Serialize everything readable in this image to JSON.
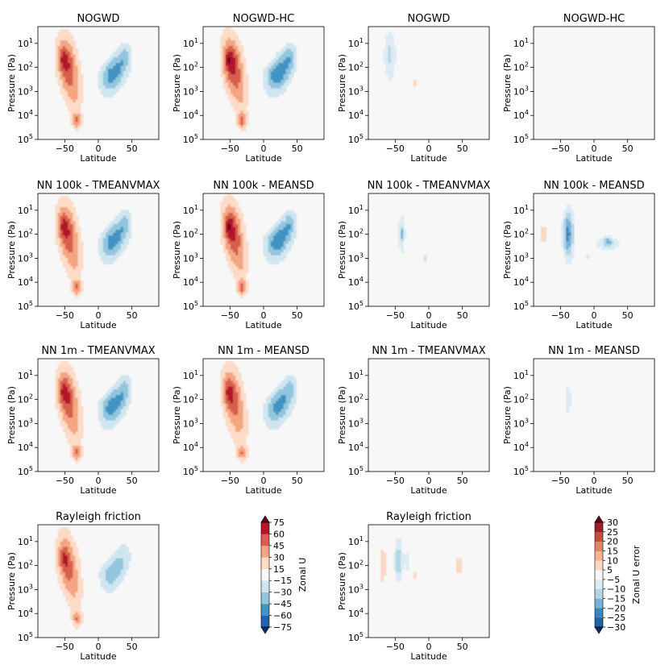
{
  "chart_data": {
    "type": "heatmap",
    "panels": [
      {
        "title": "NOGWD",
        "kind": "field",
        "mode": "field",
        "scale": 1.0
      },
      {
        "title": "NOGWD-HC",
        "kind": "field",
        "mode": "field",
        "scale": 1.06
      },
      {
        "title": "NOGWD",
        "kind": "error",
        "mode": "err_nogwd",
        "scale": 1.0
      },
      {
        "title": "NOGWD-HC",
        "kind": "error",
        "mode": "empty",
        "scale": 0
      },
      {
        "title": "NN 100k - TMEANVMAX",
        "kind": "field",
        "mode": "field",
        "scale": 1.0
      },
      {
        "title": "NN 100k - MEANSD",
        "kind": "field",
        "mode": "field",
        "scale": 1.05
      },
      {
        "title": "NN 100k - TMEANVMAX",
        "kind": "error",
        "mode": "err_nn100a",
        "scale": 1.0
      },
      {
        "title": "NN 100k - MEANSD",
        "kind": "error",
        "mode": "err_nn100b",
        "scale": 1.0
      },
      {
        "title": "NN 1m - TMEANVMAX",
        "kind": "field",
        "mode": "field",
        "scale": 1.02
      },
      {
        "title": "NN 1m - MEANSD",
        "kind": "field",
        "mode": "field",
        "scale": 0.98
      },
      {
        "title": "NN 1m - TMEANVMAX",
        "kind": "error",
        "mode": "err_nn1ma",
        "scale": 1.0
      },
      {
        "title": "NN 1m - MEANSD",
        "kind": "error",
        "mode": "err_nn1mb",
        "scale": 1.0
      },
      {
        "title": "Rayleigh friction",
        "kind": "field",
        "mode": "field_rf",
        "scale": 0.92
      },
      {
        "title": "Rayleigh friction",
        "kind": "error",
        "mode": "err_rf",
        "scale": 1.0
      }
    ],
    "xlabel": "Latitude",
    "ylabel": "Pressure (Pa)",
    "xlim": [
      -90,
      90
    ],
    "xticks": [
      -50,
      0,
      50
    ],
    "ylim": [
      100000,
      2
    ],
    "yticks": [
      {
        "base": "10",
        "exp": "1"
      },
      {
        "base": "10",
        "exp": "2"
      },
      {
        "base": "10",
        "exp": "3"
      },
      {
        "base": "10",
        "exp": "4"
      },
      {
        "base": "10",
        "exp": "5"
      }
    ],
    "colorbars": [
      {
        "label": "Zonal U",
        "levels": [
          -75,
          -60,
          -45,
          -30,
          -15,
          15,
          30,
          45,
          60,
          75
        ],
        "tick_labels": [
          "75",
          "60",
          "45",
          "30",
          "15",
          "−15",
          "−30",
          "−45",
          "−60",
          "−75"
        ],
        "colors": [
          "#053061",
          "#2166ac",
          "#4393c3",
          "#92c5de",
          "#d1e5f0",
          "#f7f7f7",
          "#fddbc7",
          "#f4a582",
          "#d6604d",
          "#b2182b",
          "#67001f"
        ]
      },
      {
        "label": "Zonal U error",
        "levels": [
          -30,
          -25,
          -20,
          -15,
          -10,
          -5,
          5,
          10,
          15,
          20,
          25,
          30
        ],
        "tick_labels": [
          "30",
          "25",
          "20",
          "15",
          "10",
          "5",
          "−5",
          "−10",
          "−15",
          "−20",
          "−25",
          "−30"
        ],
        "colors": [
          "#053061",
          "#1f63a8",
          "#3b88c0",
          "#76b3d7",
          "#b3d5e7",
          "#dcebf3",
          "#f7f7f7",
          "#fbd7c4",
          "#f6b092",
          "#e48368",
          "#c84c43",
          "#a31c2d",
          "#67001f"
        ]
      }
    ]
  }
}
